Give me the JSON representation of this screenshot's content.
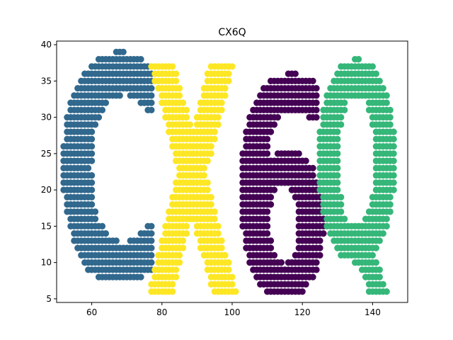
{
  "chart_data": {
    "type": "scatter",
    "title": "CX6Q",
    "xlabel": "",
    "ylabel": "",
    "xlim": [
      50,
      150
    ],
    "ylim": [
      4.5,
      40.5
    ],
    "xticks": [
      60,
      80,
      100,
      120,
      140
    ],
    "yticks": [
      5,
      10,
      15,
      20,
      25,
      30,
      35,
      40
    ],
    "grid": false,
    "legend": "none",
    "series": [
      {
        "color": "#31688e",
        "glyph": "C",
        "box": {
          "x": [
            52,
            77
          ],
          "y": [
            8,
            39
          ]
        },
        "x": [],
        "y": []
      },
      {
        "color": "#fde725",
        "glyph": "X",
        "box": {
          "x": [
            76,
            101
          ],
          "y": [
            6,
            37
          ]
        },
        "x": [],
        "y": []
      },
      {
        "color": "#440154",
        "glyph": "6",
        "box": {
          "x": [
            103,
            126
          ],
          "y": [
            6,
            36
          ]
        },
        "x": [],
        "y": []
      },
      {
        "color": "#35b779",
        "glyph": "Q",
        "box": {
          "x": [
            125,
            146
          ],
          "y": [
            6,
            38
          ]
        },
        "x": [],
        "y": []
      }
    ]
  }
}
